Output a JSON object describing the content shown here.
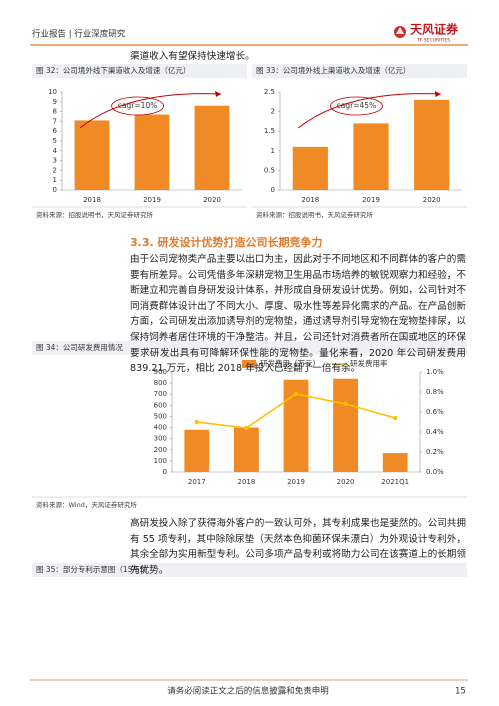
{
  "header": {
    "left": "行业报告 | 行业深度研究",
    "logo": "天风证券",
    "logo_sub": "TF SECURITIES"
  },
  "intro": "渠道收入有望保持快速增长。",
  "section": {
    "title": "3.3. 研发设计优势打造公司长期竞争力",
    "paragraph": "由于公司宠物类产品主要以出口为主，因此对于不同地区和不同群体的客户的需要有所差异。公司凭借多年深耕宠物卫生用品市场培养的敏锐观察力和经验，不断建立和完善自身研发设计体系，并形成自身研发设计优势。例如，公司针对不同消费群体设计出了不同大小、厚度、吸水性等差异化需求的产品。在产品创新方面，公司研发出添加诱导剂的宠物垫，通过诱导剂引导宠物在宠物垫排尿，以保持饲养者居住环境的干净整洁。并且，公司还针对消费者所在国或地区的环保要求研发出具有可降解环保性能的宠物垫。量化来看，2020 年公司研发费用 839.21 万元，相比 2018 年投入已经翻了一倍有余。",
    "paragraph2": "高研发投入除了获得海外客户的一致认可外，其专利成果也是斐然的。公司共拥有 55 项专利，其中除除尿垫（天然本色抑菌环保未漂白）为外观设计专利外，其余全部为实用新型专利。公司多项产品专利或将助力公司在该赛道上的长期领先优势。"
  },
  "figure35_title": "图 35：部分专利示意图（15/55）",
  "footer": {
    "note": "请务必阅读正文之后的信息披露和免责申明",
    "page": "15"
  },
  "chart_data": [
    {
      "type": "bar",
      "title": "图 32：公司境外线下渠道收入及增速（亿元）",
      "source": "资料来源：招股说明书，天风证券研究所",
      "categories": [
        "2018",
        "2019",
        "2020"
      ],
      "values": [
        7.1,
        7.7,
        8.6
      ],
      "color": "#f08a24",
      "ylim": [
        0,
        10
      ],
      "yticks": [
        0,
        1,
        2,
        3,
        4,
        5,
        6,
        7,
        8,
        9,
        10
      ],
      "grid": false,
      "annotation": "cagr=10%"
    },
    {
      "type": "bar",
      "title": "图 33：公司境外线上渠道收入及增速（亿元）",
      "source": "资料来源：招股说明书，天风证券研究所",
      "categories": [
        "2018",
        "2019",
        "2020"
      ],
      "values": [
        1.1,
        1.7,
        2.3
      ],
      "color": "#f08a24",
      "ylim": [
        0,
        2.5
      ],
      "yticks": [
        0,
        0.5,
        1,
        1.5,
        2,
        2.5
      ],
      "grid": false,
      "annotation": "cagr=45%"
    },
    {
      "type": "bar",
      "title": "图 34：公司研发费用情况",
      "source": "资料来源：Wind，天风证券研究所",
      "categories": [
        "2017",
        "2018",
        "2019",
        "2020",
        "2021Q1"
      ],
      "series": [
        {
          "name": "研发费用（万元）",
          "color": "#f08a24",
          "values": [
            380,
            400,
            830,
            839.21,
            170
          ]
        },
        {
          "name": "研发费用率",
          "color": "#ffc000",
          "values": [
            0.5,
            0.44,
            0.78,
            0.68,
            0.54
          ],
          "axis": "y2"
        }
      ],
      "ylim": [
        0,
        900
      ],
      "yticks": [
        0,
        100,
        200,
        300,
        400,
        500,
        600,
        700,
        800,
        900
      ],
      "y2lim": [
        0,
        1
      ],
      "y2ticks": [
        {
          "value": 0,
          "label": "0.0%"
        },
        {
          "value": 0.2,
          "label": "0.2%"
        },
        {
          "value": 0.4,
          "label": "0.4%"
        },
        {
          "value": 0.6,
          "label": "0.6%"
        },
        {
          "value": 0.8,
          "label": "0.8%"
        },
        {
          "value": 1,
          "label": "1.0%"
        }
      ],
      "grid": false,
      "legend": "top"
    }
  ]
}
